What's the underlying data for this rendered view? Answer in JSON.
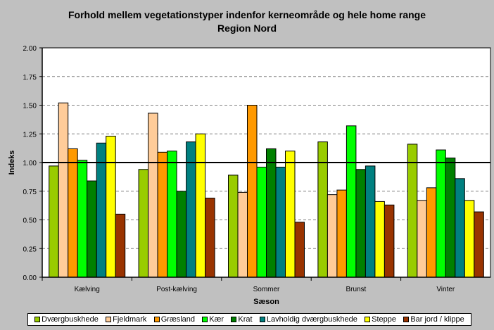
{
  "chart_data": {
    "type": "bar",
    "title": "Forhold mellem  vegetationstyper indenfor kerneområde og hele home range",
    "subtitle": "Region Nord",
    "xlabel": "Sæson",
    "ylabel": "Indeks",
    "ylim": [
      0,
      2
    ],
    "yticks": [
      "0.00",
      "0.25",
      "0.50",
      "0.75",
      "1.00",
      "1.25",
      "1.50",
      "1.75",
      "2.00"
    ],
    "grid": "horizontal dashed",
    "reference_line": 1.0,
    "legend_position": "bottom",
    "categories": [
      "Kælving",
      "Post-kælving",
      "Sommer",
      "Brunst",
      "Vinter"
    ],
    "series": [
      {
        "name": "Dværgbuskhede",
        "color": "#99cc00",
        "values": [
          0.97,
          0.94,
          0.89,
          1.18,
          1.16
        ]
      },
      {
        "name": "Fjeldmark",
        "color": "#ffcc99",
        "values": [
          1.52,
          1.43,
          0.74,
          0.72,
          0.67
        ]
      },
      {
        "name": "Græsland",
        "color": "#ff9900",
        "values": [
          1.12,
          1.09,
          1.5,
          0.76,
          0.78
        ]
      },
      {
        "name": "Kær",
        "color": "#00ff00",
        "values": [
          1.02,
          1.1,
          0.96,
          1.32,
          1.11
        ]
      },
      {
        "name": "Krat",
        "color": "#008000",
        "values": [
          0.84,
          0.75,
          1.12,
          0.94,
          1.04
        ]
      },
      {
        "name": "Lavholdig dværgbuskhede",
        "color": "#008080",
        "values": [
          1.17,
          1.18,
          0.96,
          0.97,
          0.86
        ]
      },
      {
        "name": "Steppe",
        "color": "#ffff00",
        "values": [
          1.23,
          1.25,
          1.1,
          0.66,
          0.67
        ]
      },
      {
        "name": "Bar jord / klippe",
        "color": "#993300",
        "values": [
          0.55,
          0.69,
          0.48,
          0.63,
          0.57
        ]
      }
    ]
  }
}
